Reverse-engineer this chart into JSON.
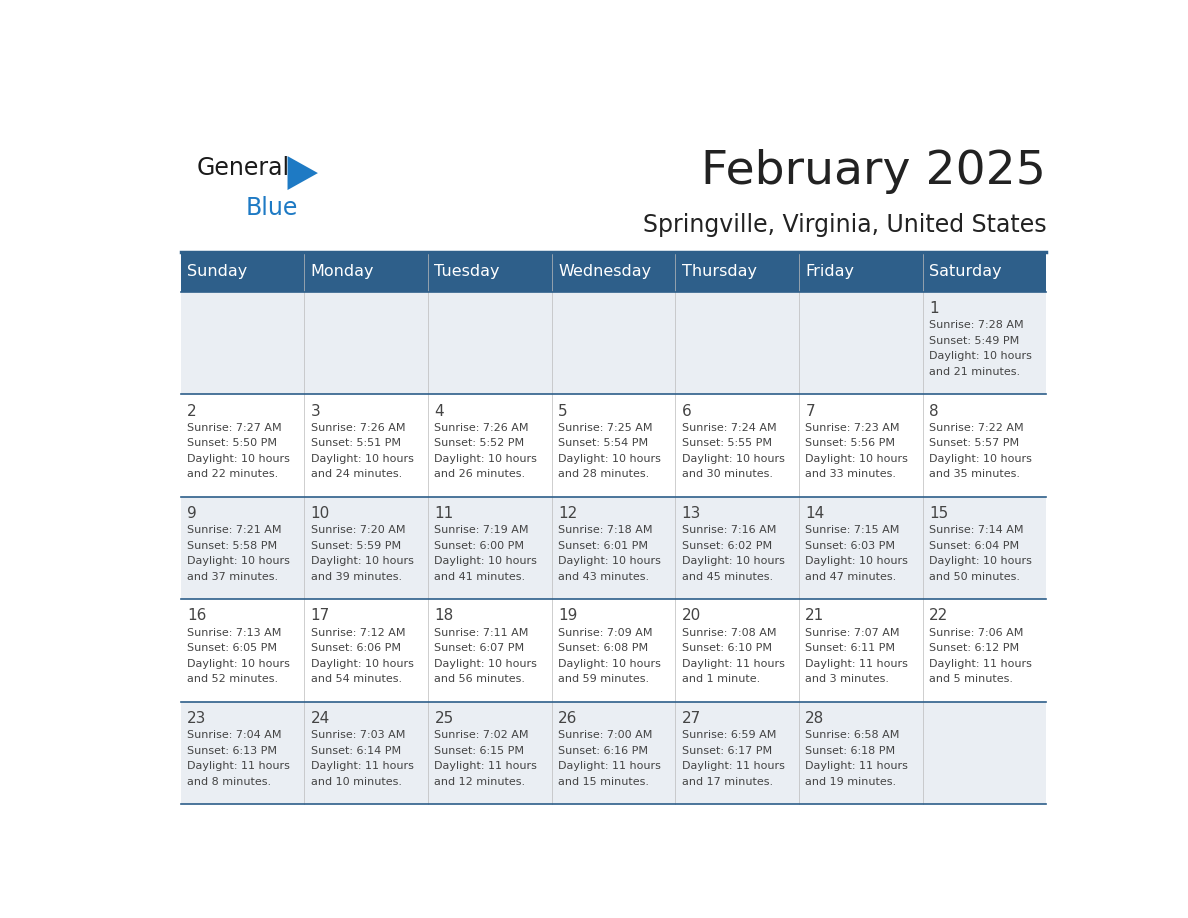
{
  "title": "February 2025",
  "subtitle": "Springville, Virginia, United States",
  "header_bg": "#2E5F8A",
  "header_text_color": "#FFFFFF",
  "header_days": [
    "Sunday",
    "Monday",
    "Tuesday",
    "Wednesday",
    "Thursday",
    "Friday",
    "Saturday"
  ],
  "cell_bg_even": "#EAEEF3",
  "cell_bg_odd": "#FFFFFF",
  "divider_color": "#2E5F8A",
  "text_color": "#444444",
  "title_color": "#222222",
  "calendar": [
    [
      null,
      null,
      null,
      null,
      null,
      null,
      {
        "day": 1,
        "sunrise": "7:28 AM",
        "sunset": "5:49 PM",
        "daylight_line1": "10 hours",
        "daylight_line2": "and 21 minutes."
      }
    ],
    [
      {
        "day": 2,
        "sunrise": "7:27 AM",
        "sunset": "5:50 PM",
        "daylight_line1": "10 hours",
        "daylight_line2": "and 22 minutes."
      },
      {
        "day": 3,
        "sunrise": "7:26 AM",
        "sunset": "5:51 PM",
        "daylight_line1": "10 hours",
        "daylight_line2": "and 24 minutes."
      },
      {
        "day": 4,
        "sunrise": "7:26 AM",
        "sunset": "5:52 PM",
        "daylight_line1": "10 hours",
        "daylight_line2": "and 26 minutes."
      },
      {
        "day": 5,
        "sunrise": "7:25 AM",
        "sunset": "5:54 PM",
        "daylight_line1": "10 hours",
        "daylight_line2": "and 28 minutes."
      },
      {
        "day": 6,
        "sunrise": "7:24 AM",
        "sunset": "5:55 PM",
        "daylight_line1": "10 hours",
        "daylight_line2": "and 30 minutes."
      },
      {
        "day": 7,
        "sunrise": "7:23 AM",
        "sunset": "5:56 PM",
        "daylight_line1": "10 hours",
        "daylight_line2": "and 33 minutes."
      },
      {
        "day": 8,
        "sunrise": "7:22 AM",
        "sunset": "5:57 PM",
        "daylight_line1": "10 hours",
        "daylight_line2": "and 35 minutes."
      }
    ],
    [
      {
        "day": 9,
        "sunrise": "7:21 AM",
        "sunset": "5:58 PM",
        "daylight_line1": "10 hours",
        "daylight_line2": "and 37 minutes."
      },
      {
        "day": 10,
        "sunrise": "7:20 AM",
        "sunset": "5:59 PM",
        "daylight_line1": "10 hours",
        "daylight_line2": "and 39 minutes."
      },
      {
        "day": 11,
        "sunrise": "7:19 AM",
        "sunset": "6:00 PM",
        "daylight_line1": "10 hours",
        "daylight_line2": "and 41 minutes."
      },
      {
        "day": 12,
        "sunrise": "7:18 AM",
        "sunset": "6:01 PM",
        "daylight_line1": "10 hours",
        "daylight_line2": "and 43 minutes."
      },
      {
        "day": 13,
        "sunrise": "7:16 AM",
        "sunset": "6:02 PM",
        "daylight_line1": "10 hours",
        "daylight_line2": "and 45 minutes."
      },
      {
        "day": 14,
        "sunrise": "7:15 AM",
        "sunset": "6:03 PM",
        "daylight_line1": "10 hours",
        "daylight_line2": "and 47 minutes."
      },
      {
        "day": 15,
        "sunrise": "7:14 AM",
        "sunset": "6:04 PM",
        "daylight_line1": "10 hours",
        "daylight_line2": "and 50 minutes."
      }
    ],
    [
      {
        "day": 16,
        "sunrise": "7:13 AM",
        "sunset": "6:05 PM",
        "daylight_line1": "10 hours",
        "daylight_line2": "and 52 minutes."
      },
      {
        "day": 17,
        "sunrise": "7:12 AM",
        "sunset": "6:06 PM",
        "daylight_line1": "10 hours",
        "daylight_line2": "and 54 minutes."
      },
      {
        "day": 18,
        "sunrise": "7:11 AM",
        "sunset": "6:07 PM",
        "daylight_line1": "10 hours",
        "daylight_line2": "and 56 minutes."
      },
      {
        "day": 19,
        "sunrise": "7:09 AM",
        "sunset": "6:08 PM",
        "daylight_line1": "10 hours",
        "daylight_line2": "and 59 minutes."
      },
      {
        "day": 20,
        "sunrise": "7:08 AM",
        "sunset": "6:10 PM",
        "daylight_line1": "11 hours",
        "daylight_line2": "and 1 minute."
      },
      {
        "day": 21,
        "sunrise": "7:07 AM",
        "sunset": "6:11 PM",
        "daylight_line1": "11 hours",
        "daylight_line2": "and 3 minutes."
      },
      {
        "day": 22,
        "sunrise": "7:06 AM",
        "sunset": "6:12 PM",
        "daylight_line1": "11 hours",
        "daylight_line2": "and 5 minutes."
      }
    ],
    [
      {
        "day": 23,
        "sunrise": "7:04 AM",
        "sunset": "6:13 PM",
        "daylight_line1": "11 hours",
        "daylight_line2": "and 8 minutes."
      },
      {
        "day": 24,
        "sunrise": "7:03 AM",
        "sunset": "6:14 PM",
        "daylight_line1": "11 hours",
        "daylight_line2": "and 10 minutes."
      },
      {
        "day": 25,
        "sunrise": "7:02 AM",
        "sunset": "6:15 PM",
        "daylight_line1": "11 hours",
        "daylight_line2": "and 12 minutes."
      },
      {
        "day": 26,
        "sunrise": "7:00 AM",
        "sunset": "6:16 PM",
        "daylight_line1": "11 hours",
        "daylight_line2": "and 15 minutes."
      },
      {
        "day": 27,
        "sunrise": "6:59 AM",
        "sunset": "6:17 PM",
        "daylight_line1": "11 hours",
        "daylight_line2": "and 17 minutes."
      },
      {
        "day": 28,
        "sunrise": "6:58 AM",
        "sunset": "6:18 PM",
        "daylight_line1": "11 hours",
        "daylight_line2": "and 19 minutes."
      },
      null
    ]
  ],
  "logo_general_color": "#1a1a1a",
  "logo_blue_color": "#1e7ac4",
  "logo_triangle_color": "#1e7ac4"
}
